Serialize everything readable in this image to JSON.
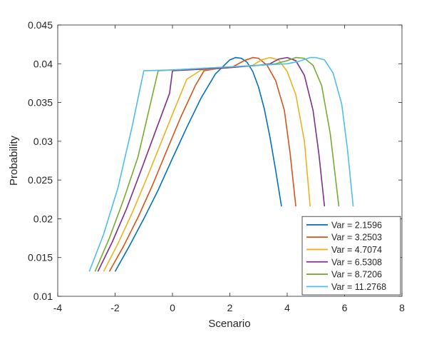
{
  "chart_data": {
    "type": "line",
    "title": "",
    "xlabel": "Scenario",
    "ylabel": "Probability",
    "xlim": [
      -4,
      8
    ],
    "ylim": [
      0.01,
      0.045
    ],
    "xticks": [
      -4,
      -2,
      0,
      2,
      4,
      6,
      8
    ],
    "xtick_labels": [
      "-4",
      "-2",
      "0",
      "2",
      "4",
      "6",
      "8"
    ],
    "yticks": [
      0.01,
      0.015,
      0.02,
      0.025,
      0.03,
      0.035,
      0.04,
      0.045
    ],
    "ytick_labels": [
      "0.01",
      "0.015",
      "0.02",
      "0.025",
      "0.03",
      "0.035",
      "0.04",
      "0.045"
    ],
    "grid": false,
    "legend_position": "bottom-right",
    "series": [
      {
        "name": "Var = 2.1596",
        "color": "#0072BD",
        "x": [
          -2.0,
          -1.5,
          -1.0,
          -0.5,
          0.0,
          0.5,
          1.0,
          1.5,
          2.0,
          2.2,
          2.4,
          2.6,
          2.8,
          3.0,
          3.2,
          3.4,
          3.6,
          3.8
        ],
        "y": [
          0.0132,
          0.0165,
          0.02,
          0.0237,
          0.0278,
          0.0318,
          0.0356,
          0.0387,
          0.0405,
          0.0408,
          0.0407,
          0.0402,
          0.039,
          0.037,
          0.0342,
          0.0305,
          0.0262,
          0.0216
        ]
      },
      {
        "name": "Var = 3.2503",
        "color": "#D95319",
        "x": [
          -2.2,
          -1.7,
          -1.2,
          -0.7,
          -0.2,
          0.3,
          0.8,
          1.1,
          1.6,
          2.1,
          2.5,
          2.8,
          3.0,
          3.3,
          3.6,
          3.9,
          4.1,
          4.3
        ],
        "y": [
          0.0132,
          0.0165,
          0.0202,
          0.0243,
          0.0288,
          0.0332,
          0.0372,
          0.0391,
          0.0394,
          0.0396,
          0.0404,
          0.0408,
          0.0407,
          0.0398,
          0.0378,
          0.034,
          0.0285,
          0.0216
        ]
      },
      {
        "name": "Var = 4.7074",
        "color": "#EDB120",
        "x": [
          -2.4,
          -1.9,
          -1.4,
          -0.9,
          -0.4,
          0.1,
          0.5,
          1.0,
          2.0,
          2.8,
          3.1,
          3.4,
          3.7,
          4.0,
          4.3,
          4.6,
          4.8
        ],
        "y": [
          0.0132,
          0.0168,
          0.0208,
          0.0252,
          0.0298,
          0.0344,
          0.038,
          0.0392,
          0.0395,
          0.0398,
          0.0405,
          0.0408,
          0.0405,
          0.039,
          0.036,
          0.03,
          0.0216
        ]
      },
      {
        "name": "Var = 6.5308",
        "color": "#7E2F8E",
        "x": [
          -2.6,
          -2.1,
          -1.6,
          -1.1,
          -0.6,
          -0.1,
          0.0,
          1.0,
          2.0,
          3.0,
          3.4,
          3.7,
          4.0,
          4.3,
          4.6,
          4.9,
          5.1,
          5.3
        ],
        "y": [
          0.0132,
          0.017,
          0.0213,
          0.0262,
          0.0312,
          0.0362,
          0.0391,
          0.0393,
          0.0395,
          0.0398,
          0.04,
          0.0406,
          0.0408,
          0.0404,
          0.0385,
          0.034,
          0.0285,
          0.0216
        ]
      },
      {
        "name": "Var = 8.7206",
        "color": "#77AC30",
        "x": [
          -2.7,
          -2.2,
          -1.7,
          -1.2,
          -0.5,
          0.0,
          1.0,
          2.0,
          3.0,
          3.6,
          4.0,
          4.3,
          4.6,
          4.9,
          5.2,
          5.5,
          5.8
        ],
        "y": [
          0.0132,
          0.0175,
          0.0225,
          0.028,
          0.0391,
          0.0392,
          0.0394,
          0.0396,
          0.0398,
          0.04,
          0.0404,
          0.0408,
          0.0407,
          0.0398,
          0.0372,
          0.031,
          0.0216
        ]
      },
      {
        "name": "Var = 11.2768",
        "color": "#4DBEEE",
        "x": [
          -2.9,
          -2.4,
          -1.9,
          -1.4,
          -1.0,
          0.0,
          1.0,
          2.0,
          3.0,
          4.0,
          4.4,
          4.8,
          5.0,
          5.3,
          5.6,
          5.9,
          6.1,
          6.3
        ],
        "y": [
          0.0132,
          0.018,
          0.024,
          0.032,
          0.0391,
          0.0392,
          0.0394,
          0.0396,
          0.0398,
          0.04,
          0.0403,
          0.0408,
          0.0408,
          0.0405,
          0.0388,
          0.0348,
          0.029,
          0.0216
        ]
      }
    ]
  }
}
